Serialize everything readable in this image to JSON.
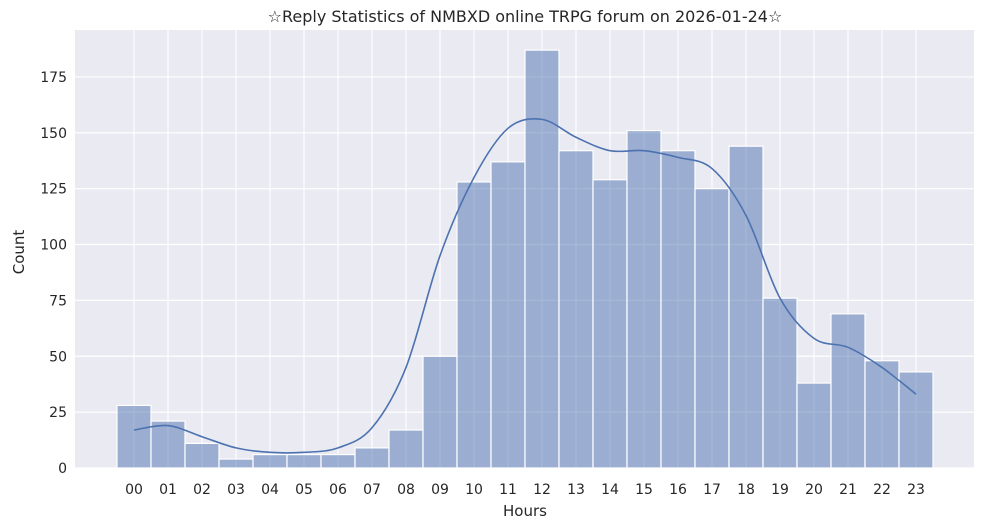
{
  "chart_data": {
    "type": "bar",
    "title": "☆Reply Statistics of NMBXD online TRPG forum on 2026-01-24☆",
    "xlabel": "Hours",
    "ylabel": "Count",
    "categories": [
      "00",
      "01",
      "02",
      "03",
      "04",
      "05",
      "06",
      "07",
      "08",
      "09",
      "10",
      "11",
      "12",
      "13",
      "14",
      "15",
      "16",
      "17",
      "18",
      "19",
      "20",
      "21",
      "22",
      "23"
    ],
    "values": [
      28,
      21,
      11,
      4,
      6,
      6,
      6,
      9,
      17,
      50,
      128,
      137,
      187,
      142,
      129,
      151,
      142,
      125,
      144,
      76,
      38,
      69,
      48,
      43
    ],
    "kde": [
      17,
      19,
      14,
      9,
      7,
      7,
      9,
      18,
      45,
      95,
      130,
      152,
      156,
      148,
      142,
      142,
      139,
      134,
      113,
      76,
      58,
      54,
      45,
      33
    ],
    "yticks": [
      0,
      25,
      50,
      75,
      100,
      125,
      150,
      175
    ],
    "ylim": [
      0,
      196
    ],
    "grid": true,
    "colors": {
      "background": "#eaeaf2",
      "bar_fill": "#4c72b0",
      "bar_edge": "#ffffff",
      "kde_line": "#4c72b0",
      "grid": "#ffffff"
    }
  }
}
